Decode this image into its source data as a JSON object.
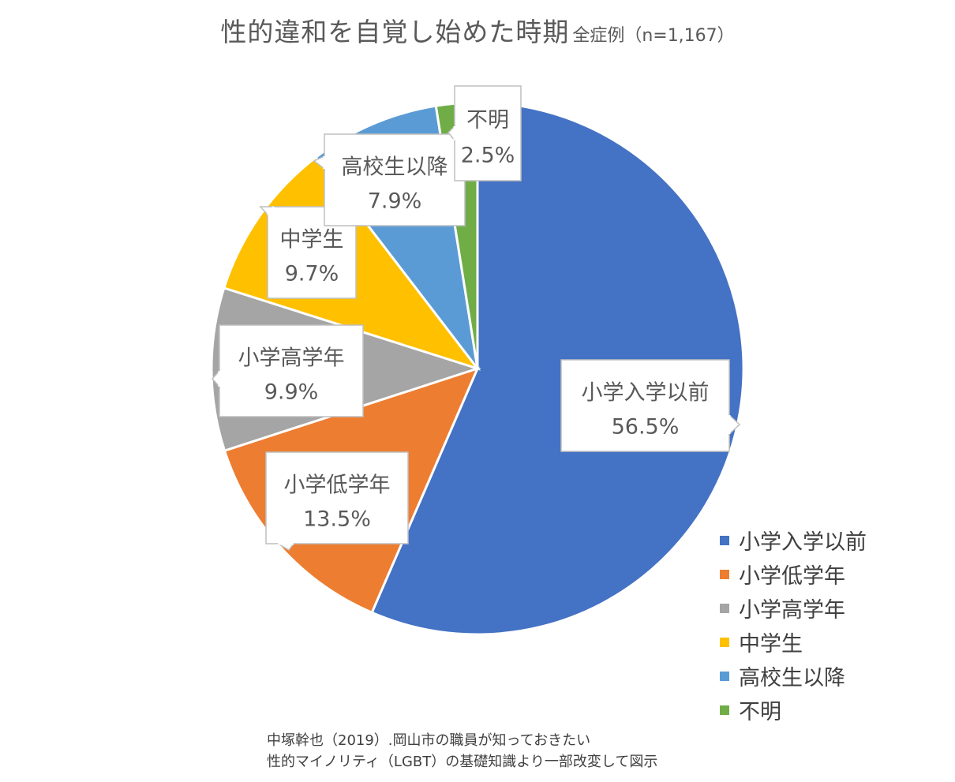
{
  "title": {
    "main": "性的違和を自覚し始めた時期",
    "sub": "全症例（n=1,167）"
  },
  "chart_data": {
    "type": "pie",
    "title": "性的違和を自覚し始めた時期",
    "subtitle": "全症例（n=1,167）",
    "categories": [
      "小学入学以前",
      "小学低学年",
      "小学高学年",
      "中学生",
      "高校生以降",
      "不明"
    ],
    "values": [
      56.5,
      13.5,
      9.9,
      9.7,
      7.9,
      2.5
    ],
    "data_labels": [
      "56.5%",
      "13.5%",
      "9.9%",
      "9.7%",
      "7.9%",
      "2.5%"
    ],
    "colors": [
      "#4472C4",
      "#ED7D31",
      "#A5A5A5",
      "#FFC000",
      "#5B9BD5",
      "#70AD47"
    ],
    "start": "12 o'clock, clockwise",
    "legend_position": "bottom-right"
  },
  "source": {
    "line1": "中塚幹也（2019）.岡山市の職員が知っておきたい",
    "line2": "性的マイノリティ（LGBT）の基礎知識より一部改変して図示"
  }
}
